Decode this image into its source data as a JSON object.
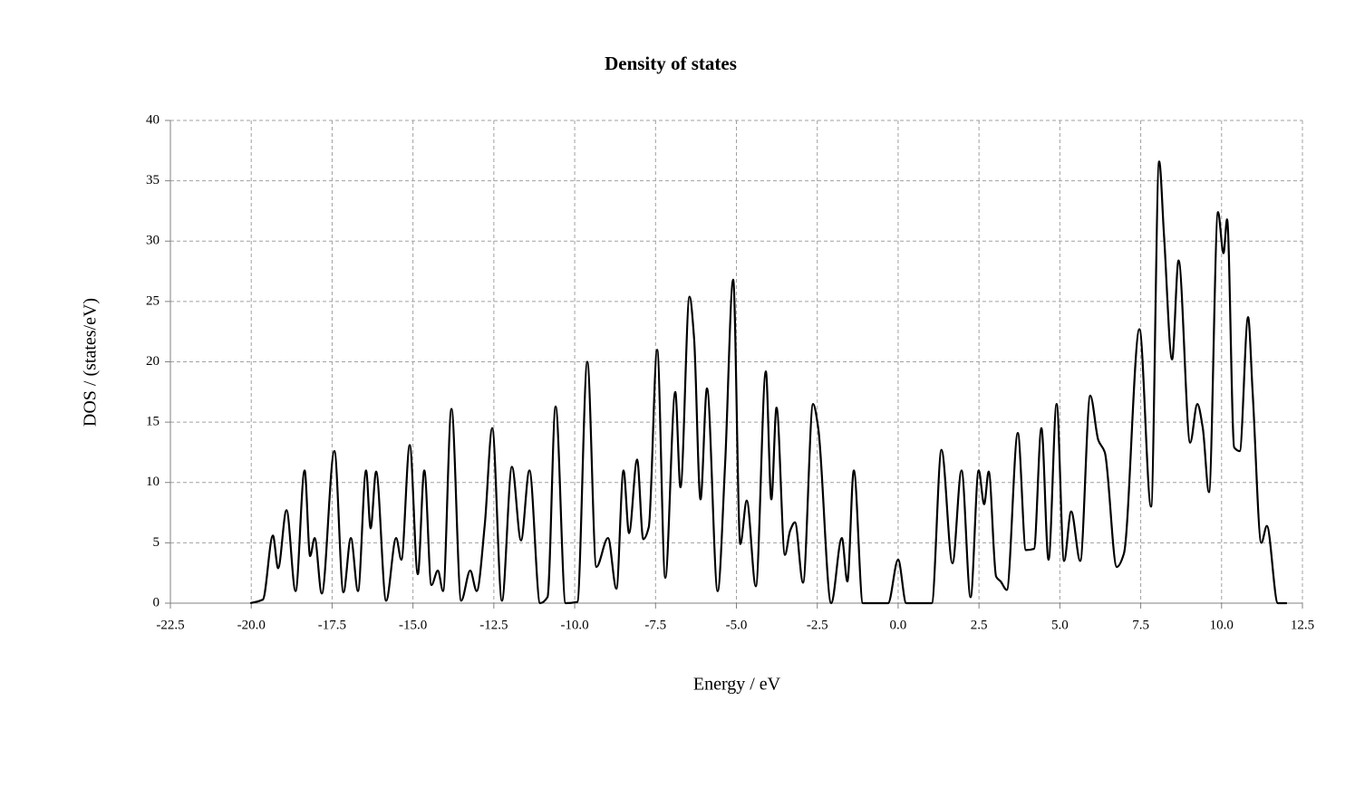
{
  "chart_data": {
    "type": "line",
    "title": "Density of states",
    "xlabel": "Energy / eV",
    "ylabel": "DOS / (states/eV)",
    "xlim": [
      -22.5,
      12.5
    ],
    "ylim": [
      0,
      40
    ],
    "xticks": [
      -22.5,
      {
        "value": -20,
        "label": "-20.0"
      },
      -17.5,
      {
        "value": -15,
        "label": "-15.0"
      },
      -12.5,
      {
        "value": -10,
        "label": "-10.0"
      },
      -7.5,
      {
        "value": -5,
        "label": "-5.0"
      },
      -2.5,
      {
        "value": 0,
        "label": "0.0"
      },
      2.5,
      {
        "value": 5,
        "label": "5.0"
      },
      7.5,
      {
        "value": 10,
        "label": "10.0"
      },
      12.5
    ],
    "yticks": [
      0,
      5,
      10,
      15,
      20,
      25,
      30,
      35,
      40
    ],
    "grid": true,
    "series": [
      {
        "name": "DOS",
        "color": "#000000",
        "x": [
          -20.03,
          -19.64,
          -19.33,
          -19.17,
          -18.91,
          -18.63,
          -18.35,
          -18.18,
          -18.04,
          -17.82,
          -17.43,
          -17.15,
          -16.92,
          -16.7,
          -16.45,
          -16.31,
          -16.14,
          -15.83,
          -15.52,
          -15.36,
          -15.1,
          -14.85,
          -14.65,
          -14.43,
          -14.23,
          -14.07,
          -13.81,
          -13.51,
          -13.23,
          -13.03,
          -12.78,
          -12.55,
          -12.25,
          -11.94,
          -11.66,
          -11.4,
          -11.07,
          -10.84,
          -10.59,
          -10.28,
          -9.92,
          -9.61,
          -9.33,
          -8.97,
          -8.71,
          -8.49,
          -8.32,
          -8.07,
          -7.88,
          -7.71,
          -7.45,
          -7.2,
          -6.89,
          -6.73,
          -6.45,
          -6.31,
          -6.11,
          -5.91,
          -5.58,
          -5.35,
          -5.1,
          -4.88,
          -4.68,
          -4.4,
          -4.09,
          -3.92,
          -3.76,
          -3.5,
          -3.34,
          -3.19,
          -2.94,
          -2.63,
          -2.47,
          -2.07,
          -1.74,
          -1.57,
          -1.37,
          -1.09,
          -0.31,
          0.0,
          0.25,
          1.04,
          1.34,
          1.68,
          1.96,
          2.24,
          2.49,
          2.66,
          2.8,
          3.03,
          3.17,
          3.36,
          3.7,
          3.95,
          4.2,
          4.43,
          4.65,
          4.9,
          5.13,
          5.35,
          5.63,
          5.94,
          6.19,
          6.39,
          6.76,
          6.98,
          7.46,
          7.82,
          8.07,
          8.22,
          8.47,
          8.67,
          9.03,
          9.25,
          9.42,
          9.61,
          9.89,
          10.06,
          10.17,
          10.39,
          10.56,
          10.82,
          10.96,
          11.23,
          11.4,
          11.74,
          12.02
        ],
        "values": [
          0,
          0.3,
          5.6,
          2.9,
          7.7,
          1.0,
          11.0,
          3.9,
          5.4,
          0.8,
          12.6,
          0.9,
          5.4,
          1.0,
          11.0,
          6.2,
          10.9,
          0.2,
          5.4,
          3.6,
          13.1,
          2.4,
          11.0,
          1.5,
          2.7,
          1.0,
          16.1,
          0.2,
          2.7,
          1.0,
          6.5,
          14.5,
          0.2,
          11.3,
          5.2,
          11.0,
          0,
          0.5,
          16.3,
          0,
          0.1,
          20.0,
          3.0,
          5.4,
          1.2,
          11.0,
          5.8,
          11.9,
          5.3,
          6.3,
          21.0,
          2.1,
          17.5,
          9.6,
          25.4,
          22.0,
          8.6,
          17.8,
          1.0,
          11.5,
          26.8,
          4.9,
          8.5,
          1.4,
          19.2,
          8.6,
          16.2,
          4.0,
          6.0,
          6.7,
          1.7,
          16.5,
          14.5,
          0,
          5.4,
          1.8,
          11.0,
          0,
          0,
          3.6,
          0,
          0,
          12.7,
          3.3,
          11.0,
          0.5,
          11.0,
          8.2,
          10.9,
          2.2,
          1.8,
          1.1,
          14.1,
          4.4,
          4.5,
          14.5,
          3.6,
          16.5,
          3.5,
          7.6,
          3.5,
          17.2,
          13.5,
          12.5,
          3.0,
          4.1,
          22.7,
          8.0,
          36.6,
          30.5,
          20.2,
          28.4,
          13.3,
          16.5,
          14.5,
          9.2,
          32.4,
          29.0,
          31.8,
          12.9,
          12.6,
          23.7,
          17.5,
          5.0,
          6.4,
          0,
          0
        ]
      }
    ]
  }
}
